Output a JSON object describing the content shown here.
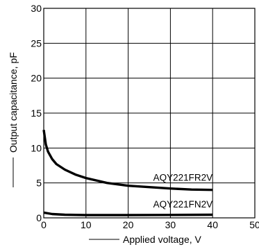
{
  "chart_data": {
    "type": "line",
    "xlabel": "Applied voltage, V",
    "ylabel": "Output capacitance, pF",
    "xlim": [
      0,
      50
    ],
    "ylim": [
      0,
      30
    ],
    "xticks": [
      0,
      10,
      20,
      30,
      40,
      50
    ],
    "yticks": [
      0,
      5,
      10,
      15,
      20,
      25,
      30
    ],
    "grid": true,
    "series": [
      {
        "name": "AQY221FR2V",
        "x": [
          0,
          0.5,
          1,
          2,
          3,
          5,
          7.5,
          10,
          15,
          20,
          25,
          30,
          35,
          40
        ],
        "y": [
          12.6,
          10.5,
          9.5,
          8.4,
          7.7,
          6.9,
          6.2,
          5.7,
          5.0,
          4.6,
          4.4,
          4.2,
          4.05,
          4.0
        ]
      },
      {
        "name": "AQY221FN2V",
        "x": [
          0,
          2,
          5,
          10,
          20,
          30,
          40
        ],
        "y": [
          0.75,
          0.55,
          0.45,
          0.4,
          0.4,
          0.42,
          0.45
        ]
      }
    ]
  }
}
